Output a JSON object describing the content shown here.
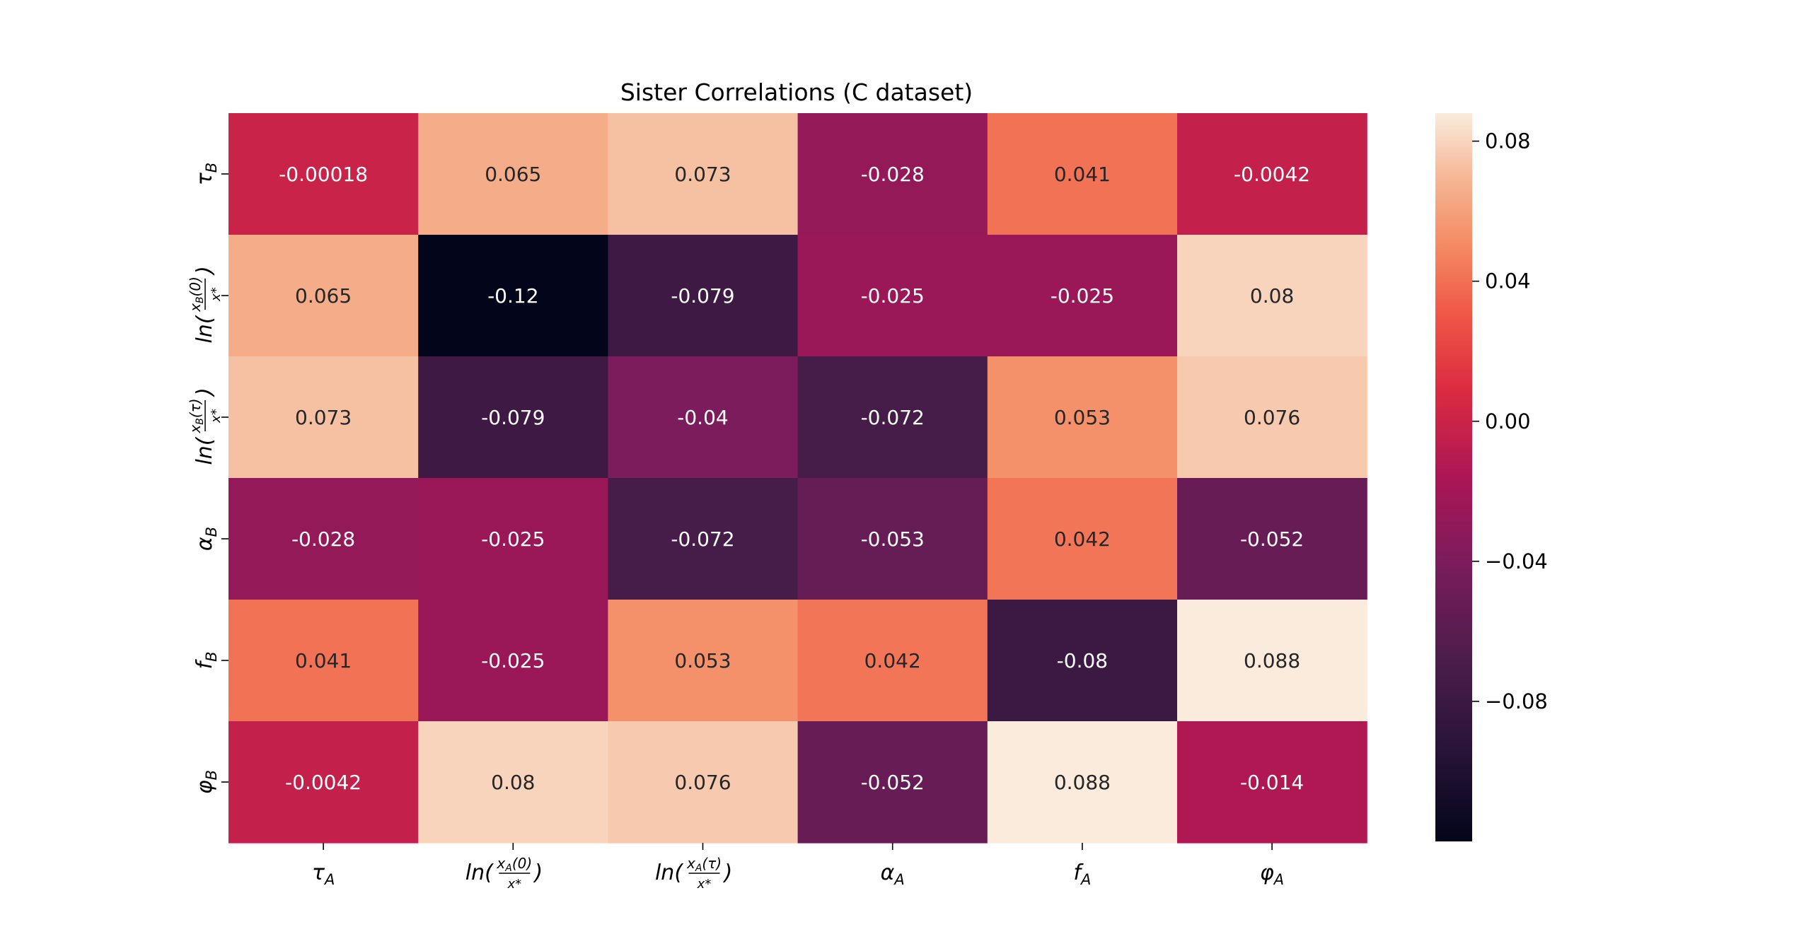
{
  "chart_data": {
    "type": "heatmap",
    "title": "Sister Correlations (C dataset)",
    "x_labels": [
      "τ_A",
      "ln(x_A(0)/x*)",
      "ln(x_A(τ)/x*)",
      "α_A",
      "f_A",
      "φ_A"
    ],
    "y_labels": [
      "τ_B",
      "ln(x_B(0)/x*)",
      "ln(x_B(τ)/x*)",
      "α_B",
      "f_B",
      "φ_B"
    ],
    "values": [
      [
        -0.00018,
        0.065,
        0.073,
        -0.028,
        0.041,
        -0.0042
      ],
      [
        0.065,
        -0.12,
        -0.079,
        -0.025,
        -0.025,
        0.08
      ],
      [
        0.073,
        -0.079,
        -0.04,
        -0.072,
        0.053,
        0.076
      ],
      [
        -0.028,
        -0.025,
        -0.072,
        -0.053,
        0.042,
        -0.052
      ],
      [
        0.041,
        -0.025,
        0.053,
        0.042,
        -0.08,
        0.088
      ],
      [
        -0.0042,
        0.08,
        0.076,
        -0.052,
        0.088,
        -0.014
      ]
    ],
    "annotations": [
      [
        "-0.00018",
        "0.065",
        "0.073",
        "-0.028",
        "0.041",
        "-0.0042"
      ],
      [
        "0.065",
        "-0.12",
        "-0.079",
        "-0.025",
        "-0.025",
        "0.08"
      ],
      [
        "0.073",
        "-0.079",
        "-0.04",
        "-0.072",
        "0.053",
        "0.076"
      ],
      [
        "-0.028",
        "-0.025",
        "-0.072",
        "-0.053",
        "0.042",
        "-0.052"
      ],
      [
        "0.041",
        "-0.025",
        "0.053",
        "0.042",
        "-0.08",
        "0.088"
      ],
      [
        "-0.0042",
        "0.08",
        "0.076",
        "-0.052",
        "0.088",
        "-0.014"
      ]
    ],
    "colorscale": "rocket",
    "vmin": -0.12,
    "vmax": 0.088,
    "colorbar_ticks": [
      0.08,
      0.04,
      0.0,
      -0.04,
      -0.08
    ],
    "colorbar_tick_labels": [
      "0.08",
      "0.04",
      "0.00",
      "−0.04",
      "−0.08"
    ]
  }
}
